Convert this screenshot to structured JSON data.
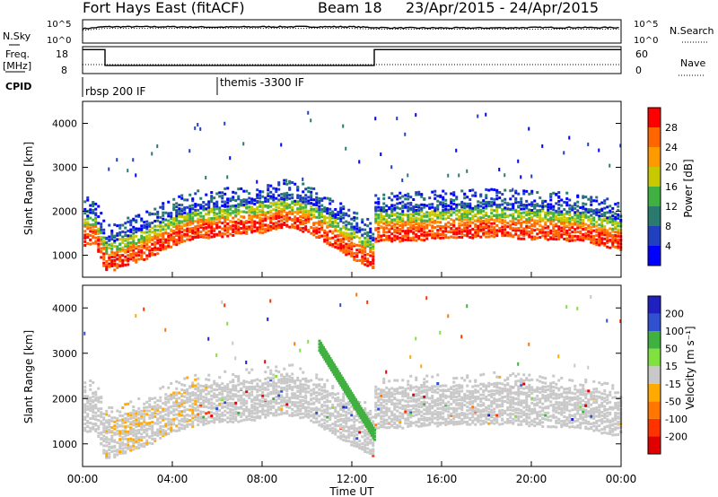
{
  "header": {
    "station": "Fort Hays East (fitACF)",
    "beam": "Beam 18",
    "date_range": "23/Apr/2015 - 24/Apr/2015"
  },
  "colors": {
    "power_scale": [
      "#0000ff",
      "#2040c0",
      "#2a7a70",
      "#40b040",
      "#c8c800",
      "#ff9900",
      "#ff6600",
      "#ff0000"
    ],
    "velocity_scale": [
      "#2020c0",
      "#3050d0",
      "#40b040",
      "#80e040",
      "#c8c8c8",
      "#ffaa00",
      "#ff7700",
      "#ff3300",
      "#e00000"
    ],
    "gray": "#c8c8c8"
  },
  "chart_data": [
    {
      "type": "line",
      "name": "noise",
      "left_label": "N.Sky",
      "right_label": "N.Search",
      "left_ticks": [
        "10^5",
        "10^0"
      ],
      "right_ticks": [
        "10^5",
        "10^0"
      ],
      "x": [
        0,
        1,
        2,
        4,
        6,
        8,
        10,
        12,
        13,
        14,
        16,
        18,
        20,
        22,
        24
      ],
      "sky": [
        3.4,
        3.9,
        3.9,
        3.9,
        3.8,
        3.9,
        3.9,
        3.9,
        3.7,
        3.6,
        3.6,
        3.6,
        3.7,
        3.7,
        3.7
      ],
      "search": [
        3.0,
        3.5,
        3.5,
        3.5,
        3.5,
        3.5,
        3.5,
        3.5,
        3.3,
        3.3,
        3.3,
        3.3,
        3.3,
        3.3,
        3.3
      ]
    },
    {
      "type": "line",
      "name": "frequency",
      "left_label": "Freq. [MHz]",
      "right_label": "Nave",
      "left_ticks": [
        "18",
        "8"
      ],
      "right_ticks": [
        "60",
        "0"
      ],
      "step_x": [
        0,
        1,
        13,
        24
      ],
      "freq": [
        17.5,
        11,
        17.5,
        17.5
      ],
      "nave": [
        20,
        20,
        20,
        20
      ]
    },
    {
      "type": "table",
      "name": "cpid",
      "label": "CPID",
      "segments": [
        {
          "start": 0,
          "text": "rbsp 200 IF"
        },
        {
          "start": 6,
          "text": "themis -3300 IF"
        }
      ]
    },
    {
      "type": "heatmap",
      "name": "power",
      "ylabel": "Slant Range [km]",
      "yticks": [
        1000,
        2000,
        3000,
        4000
      ],
      "ylim": [
        500,
        4500
      ],
      "colorbar_label": "Power [dB]",
      "colorbar_ticks": [
        4,
        8,
        12,
        16,
        20,
        24,
        28
      ],
      "band_x": [
        0,
        0.5,
        1,
        2,
        3,
        4,
        5,
        6,
        7,
        8,
        9,
        10,
        11,
        12,
        12.9,
        13,
        14,
        16,
        18,
        20,
        22,
        23,
        24
      ],
      "band_center": [
        1600,
        1650,
        1000,
        1150,
        1350,
        1600,
        1750,
        1800,
        1850,
        1900,
        2000,
        1900,
        1600,
        1300,
        1050,
        1700,
        1700,
        1750,
        1800,
        1750,
        1700,
        1600,
        1500
      ]
    },
    {
      "type": "heatmap",
      "name": "velocity",
      "ylabel": "Slant Range [km]",
      "yticks": [
        1000,
        2000,
        3000,
        4000
      ],
      "ylim": [
        500,
        4500
      ],
      "xlabel": "Time UT",
      "xticks": [
        "00:00",
        "04:00",
        "08:00",
        "12:00",
        "16:00",
        "20:00",
        "00:00"
      ],
      "colorbar_label": "Velocity [m s⁻¹]",
      "colorbar_ticks": [
        200,
        100,
        50,
        15,
        -15,
        -50,
        -100,
        -200
      ],
      "green_arc_x": [
        10.5,
        11,
        11.5,
        12,
        12.5,
        13
      ],
      "green_arc_y": [
        3300,
        2900,
        2500,
        2100,
        1700,
        1300
      ]
    }
  ]
}
